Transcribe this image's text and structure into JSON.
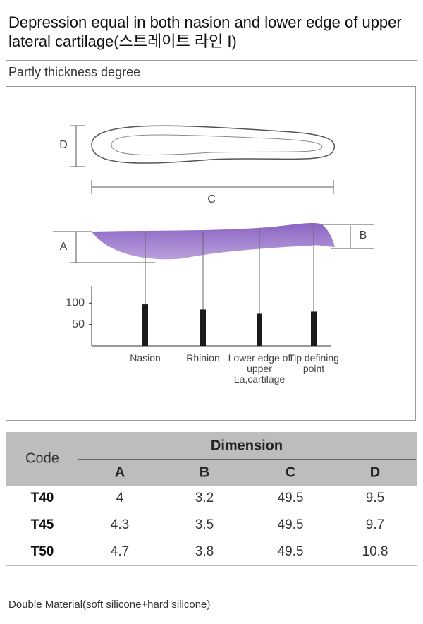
{
  "header": {
    "title": "Depression equal in both nasion and lower edge of upper lateral cartilage(스트레이트 라인 I)",
    "subtitle": "Partly thickness degree"
  },
  "diagram": {
    "labels": [
      "D",
      "C",
      "A",
      "B"
    ]
  },
  "chart_data": {
    "type": "bar",
    "categories": [
      "Nasion",
      "Rhinion",
      "Lower edge of upper La,cartilage",
      "Tip defining point"
    ],
    "values": [
      97,
      85,
      75,
      80
    ],
    "color": "#1a1a1a",
    "ylim": [
      0,
      140
    ],
    "yticks": [
      100,
      50
    ]
  },
  "table": {
    "header": {
      "code": "Code",
      "group": "Dimension",
      "columns": [
        "A",
        "B",
        "C",
        "D"
      ]
    },
    "rows": [
      [
        "T40",
        4,
        3.2,
        49.5,
        9.5
      ],
      [
        "T45",
        4.3,
        3.5,
        49.5,
        9.7
      ],
      [
        "T50",
        4.7,
        3.8,
        49.5,
        10.8
      ]
    ]
  },
  "footer": {
    "text": "Double Material(soft silicone+hard silicone)"
  }
}
